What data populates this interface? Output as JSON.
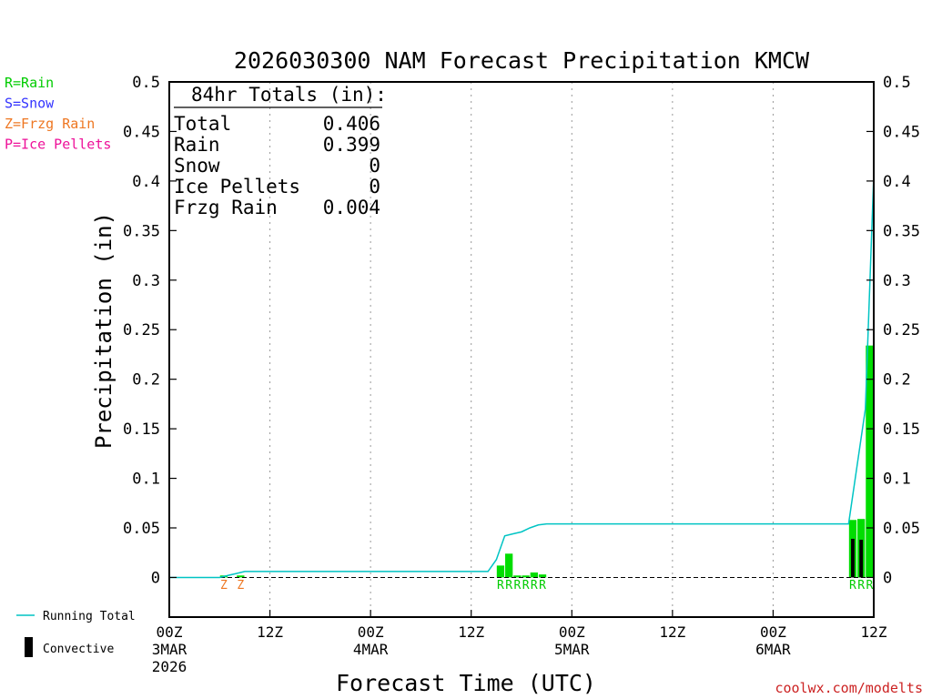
{
  "chart_data": {
    "type": "bar",
    "title": "2026030300 NAM Forecast Precipitation KMCW",
    "xlabel": "Forecast Time (UTC)",
    "ylabel": "Precipitation (in)",
    "ylim": [
      -0.04,
      0.5
    ],
    "y_ticks": [
      0,
      0.05,
      0.1,
      0.15,
      0.2,
      0.25,
      0.3,
      0.35,
      0.4,
      0.45,
      0.5
    ],
    "y_tick_labels": [
      "0",
      "0.05",
      "0.1",
      "0.15",
      "0.2",
      "0.25",
      "0.3",
      "0.35",
      "0.4",
      "0.45",
      "0.5"
    ],
    "x_unit": "forecast hour",
    "xlim": [
      0,
      84
    ],
    "x_ticks": [
      {
        "hour": 0,
        "label": "00Z",
        "sub": "3MAR",
        "sub2": "2026"
      },
      {
        "hour": 12,
        "label": "12Z",
        "sub": "",
        "sub2": ""
      },
      {
        "hour": 24,
        "label": "00Z",
        "sub": "4MAR",
        "sub2": ""
      },
      {
        "hour": 36,
        "label": "12Z",
        "sub": "",
        "sub2": ""
      },
      {
        "hour": 48,
        "label": "00Z",
        "sub": "5MAR",
        "sub2": ""
      },
      {
        "hour": 60,
        "label": "12Z",
        "sub": "",
        "sub2": ""
      },
      {
        "hour": 72,
        "label": "00Z",
        "sub": "6MAR",
        "sub2": ""
      },
      {
        "hour": 84,
        "label": "12Z",
        "sub": "",
        "sub2": ""
      }
    ],
    "grid": "vertical dotted at 12Z/00Z ticks",
    "totals": {
      "header": "84hr Totals (in):",
      "rows": [
        {
          "label": "Total",
          "value": "0.406"
        },
        {
          "label": "Rain",
          "value": "0.399"
        },
        {
          "label": "Snow",
          "value": "0"
        },
        {
          "label": "Ice Pellets",
          "value": "0"
        },
        {
          "label": "Frzg Rain",
          "value": "0.004"
        }
      ]
    },
    "type_legend": [
      {
        "label": "R=Rain",
        "color": "#00cc00"
      },
      {
        "label": "S=Snow",
        "color": "#3333ff"
      },
      {
        "label": "Z=Frzg Rain",
        "color": "#ee7722"
      },
      {
        "label": "P=Ice Pellets",
        "color": "#ee1199"
      }
    ],
    "bottom_legend": [
      {
        "label": "Running Total",
        "kind": "line",
        "color": "#00c4c4"
      },
      {
        "label": "Convective",
        "kind": "bar",
        "color": "#000000"
      }
    ],
    "series": [
      {
        "name": "Precipitation",
        "kind": "bar",
        "color": "#00dd00",
        "points": [
          {
            "hour": 7,
            "value": 0.002
          },
          {
            "hour": 9,
            "value": 0.002
          },
          {
            "hour": 40,
            "value": 0.012
          },
          {
            "hour": 41,
            "value": 0.024
          },
          {
            "hour": 42,
            "value": 0.002
          },
          {
            "hour": 43,
            "value": 0.002
          },
          {
            "hour": 44,
            "value": 0.005
          },
          {
            "hour": 45,
            "value": 0.003
          },
          {
            "hour": 82,
            "value": 0.058
          },
          {
            "hour": 83,
            "value": 0.059
          },
          {
            "hour": 84,
            "value": 0.234
          }
        ]
      },
      {
        "name": "Convective",
        "kind": "bar",
        "color": "#000000",
        "points": [
          {
            "hour": 82,
            "value": 0.039
          },
          {
            "hour": 83,
            "value": 0.038
          }
        ]
      },
      {
        "name": "Running Total",
        "kind": "line",
        "color": "#00c4c4",
        "points": [
          {
            "hour": 0,
            "value": 0
          },
          {
            "hour": 6,
            "value": 0
          },
          {
            "hour": 7,
            "value": 0.002
          },
          {
            "hour": 8,
            "value": 0.004
          },
          {
            "hour": 9,
            "value": 0.006
          },
          {
            "hour": 10,
            "value": 0.006
          },
          {
            "hour": 38,
            "value": 0.006
          },
          {
            "hour": 39,
            "value": 0.018
          },
          {
            "hour": 40,
            "value": 0.042
          },
          {
            "hour": 41,
            "value": 0.044
          },
          {
            "hour": 42,
            "value": 0.046
          },
          {
            "hour": 43,
            "value": 0.05
          },
          {
            "hour": 44,
            "value": 0.053
          },
          {
            "hour": 45,
            "value": 0.054
          },
          {
            "hour": 81,
            "value": 0.054
          },
          {
            "hour": 83,
            "value": 0.17
          },
          {
            "hour": 84,
            "value": 0.406
          }
        ]
      }
    ],
    "type_markers": [
      {
        "hour": 7,
        "code": "Z",
        "color": "#ee7722"
      },
      {
        "hour": 9,
        "code": "Z",
        "color": "#ee7722"
      },
      {
        "hour": 40,
        "code": "R",
        "color": "#00cc00"
      },
      {
        "hour": 41,
        "code": "R",
        "color": "#00cc00"
      },
      {
        "hour": 42,
        "code": "R",
        "color": "#00cc00"
      },
      {
        "hour": 43,
        "code": "R",
        "color": "#00cc00"
      },
      {
        "hour": 44,
        "code": "R",
        "color": "#00cc00"
      },
      {
        "hour": 45,
        "code": "R",
        "color": "#00cc00"
      },
      {
        "hour": 82,
        "code": "R",
        "color": "#00cc00"
      },
      {
        "hour": 83,
        "code": "R",
        "color": "#00cc00"
      },
      {
        "hour": 84,
        "code": "R",
        "color": "#00cc00"
      }
    ]
  },
  "credit": "coolwx.com/modelts"
}
